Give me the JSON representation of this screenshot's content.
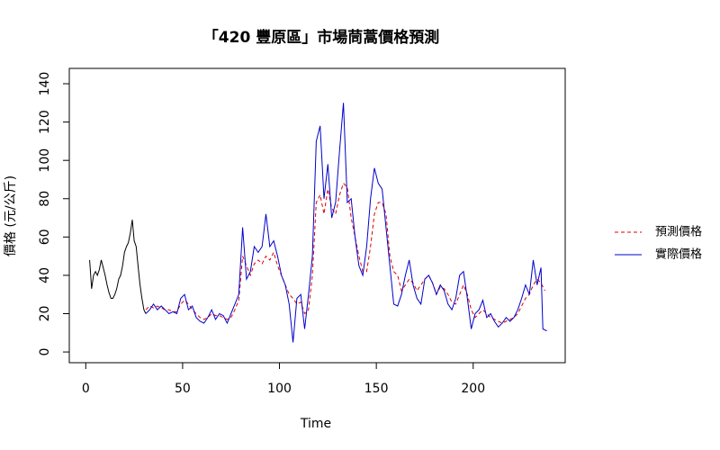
{
  "chart_data": {
    "type": "line",
    "title": "「420 豐原區」市場茼蒿價格預測",
    "xlabel": "Time",
    "ylabel": "價格 (元/公斤)",
    "xlim": [
      -8.5,
      247.5
    ],
    "ylim": [
      -5.6,
      148
    ],
    "xticks": [
      0,
      50,
      100,
      150,
      200
    ],
    "yticks": [
      0,
      20,
      40,
      60,
      80,
      100,
      120,
      140
    ],
    "legend": "right",
    "series": [
      {
        "color": "#000000",
        "dash": false,
        "x": [
          2,
          3,
          4,
          5,
          6,
          7,
          8,
          9,
          10,
          11,
          12,
          13,
          14,
          15,
          16,
          17,
          18,
          19,
          20,
          21,
          22,
          23,
          24,
          25,
          26,
          27,
          28,
          29,
          30,
          31
        ],
        "values": [
          48,
          33,
          40,
          42,
          40,
          43,
          48,
          44,
          40,
          35,
          31,
          28,
          28,
          30,
          33,
          38,
          40,
          45,
          52,
          55,
          57,
          62,
          69,
          58,
          55,
          45,
          35,
          28,
          22,
          20
        ]
      },
      {
        "name": "預測價格",
        "color": "#dd0000",
        "dash": true,
        "x": [
          31,
          33,
          35,
          37,
          39,
          41,
          43,
          45,
          47,
          49,
          51,
          53,
          55,
          57,
          59,
          61,
          63,
          65,
          67,
          69,
          71,
          73,
          75,
          77,
          79,
          81,
          83,
          85,
          87,
          89,
          91,
          93,
          95,
          97,
          99,
          101,
          103,
          105,
          107,
          109,
          111,
          113,
          115,
          117,
          119,
          121,
          123,
          125,
          127,
          129,
          131,
          133,
          135,
          137,
          139,
          141,
          143,
          145,
          147,
          149,
          151,
          153,
          155,
          157,
          159,
          161,
          163,
          165,
          167,
          169,
          171,
          173,
          175,
          177,
          179,
          181,
          183,
          185,
          187,
          189,
          191,
          193,
          195,
          197,
          199,
          201,
          203,
          205,
          207,
          209,
          211,
          213,
          215,
          217,
          219,
          221,
          223,
          225,
          227,
          229,
          231,
          233,
          235,
          237
        ],
        "values": [
          22,
          24,
          23,
          24,
          23,
          22,
          22,
          21,
          21,
          25,
          27,
          25,
          22,
          20,
          18,
          17,
          18,
          20,
          19,
          19,
          18,
          17,
          18,
          22,
          27,
          50,
          45,
          40,
          46,
          48,
          46,
          50,
          48,
          52,
          45,
          40,
          35,
          30,
          28,
          25,
          26,
          20,
          22,
          40,
          78,
          82,
          72,
          85,
          75,
          72,
          82,
          88,
          86,
          70,
          60,
          50,
          42,
          42,
          55,
          72,
          78,
          78,
          72,
          50,
          42,
          40,
          32,
          35,
          38,
          36,
          32,
          35,
          38,
          40,
          36,
          30,
          34,
          33,
          30,
          26,
          25,
          30,
          35,
          30,
          22,
          18,
          20,
          22,
          20,
          18,
          17,
          16,
          15,
          16,
          17,
          18,
          20,
          24,
          28,
          30,
          35,
          38,
          36,
          32
        ]
      },
      {
        "name": "實際價格",
        "color": "#0000cc",
        "dash": false,
        "x": [
          31,
          33,
          35,
          37,
          39,
          41,
          43,
          45,
          47,
          49,
          51,
          53,
          55,
          57,
          59,
          61,
          63,
          65,
          67,
          69,
          71,
          73,
          75,
          77,
          79,
          81,
          83,
          85,
          87,
          89,
          91,
          93,
          95,
          97,
          99,
          101,
          103,
          105,
          107,
          109,
          111,
          113,
          115,
          117,
          119,
          121,
          123,
          125,
          127,
          129,
          131,
          133,
          135,
          137,
          139,
          141,
          143,
          145,
          147,
          149,
          151,
          153,
          155,
          157,
          159,
          161,
          163,
          165,
          167,
          169,
          171,
          173,
          175,
          177,
          179,
          181,
          183,
          185,
          187,
          189,
          191,
          193,
          195,
          197,
          199,
          201,
          203,
          205,
          207,
          209,
          211,
          213,
          215,
          217,
          219,
          221,
          223,
          225,
          227,
          229,
          231,
          233,
          235,
          236,
          238
        ],
        "values": [
          20,
          22,
          25,
          22,
          24,
          22,
          20,
          21,
          20,
          28,
          30,
          22,
          24,
          18,
          16,
          15,
          18,
          22,
          17,
          20,
          19,
          15,
          20,
          25,
          30,
          65,
          38,
          42,
          55,
          52,
          55,
          72,
          55,
          58,
          50,
          40,
          35,
          25,
          5,
          28,
          30,
          12,
          30,
          50,
          110,
          118,
          80,
          98,
          70,
          78,
          105,
          130,
          78,
          80,
          60,
          45,
          40,
          55,
          80,
          96,
          88,
          85,
          65,
          45,
          25,
          24,
          30,
          40,
          48,
          35,
          28,
          25,
          38,
          40,
          36,
          30,
          35,
          32,
          25,
          22,
          28,
          40,
          42,
          28,
          12,
          20,
          22,
          27,
          18,
          20,
          16,
          13,
          15,
          18,
          16,
          18,
          22,
          28,
          35,
          30,
          48,
          35,
          44,
          12,
          11
        ]
      }
    ]
  }
}
